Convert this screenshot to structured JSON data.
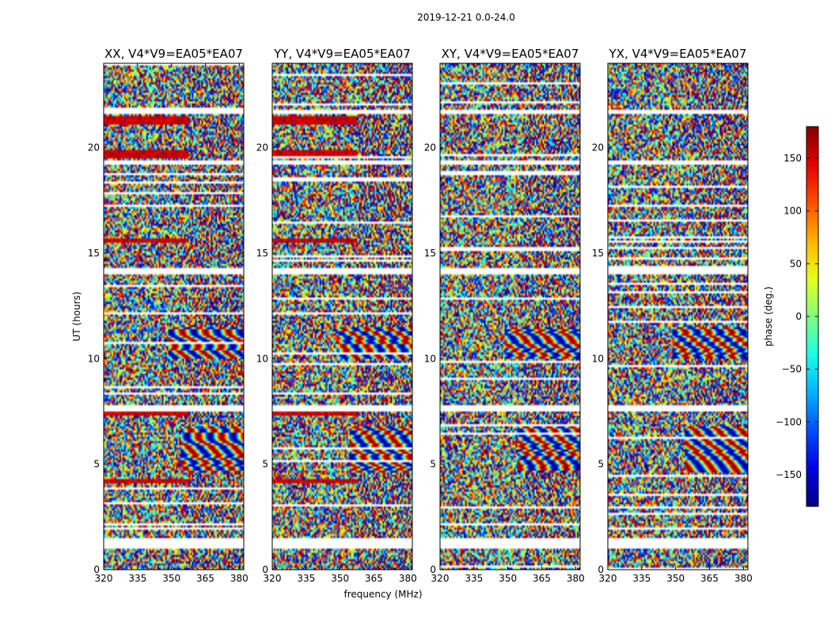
{
  "chart_data": {
    "type": "heatmap",
    "suptitle": "2019-12-21 0.0-24.0",
    "panels": [
      {
        "title": "XX, V4*V9=EA05*EA07"
      },
      {
        "title": "YY, V4*V9=EA05*EA07"
      },
      {
        "title": "XY, V4*V9=EA05*EA07"
      },
      {
        "title": "YX, V4*V9=EA05*EA07"
      }
    ],
    "xlabel": "frequency (MHz)",
    "ylabel": "UT (hours)",
    "xlim": [
      320,
      382
    ],
    "ylim": [
      0,
      24
    ],
    "xticks": [
      "320",
      "335",
      "350",
      "365",
      "380"
    ],
    "xtick_values": [
      320,
      335,
      350,
      365,
      380
    ],
    "yticks": [
      "0",
      "5",
      "10",
      "15",
      "20"
    ],
    "ytick_values": [
      0,
      5,
      10,
      15,
      20
    ],
    "colorbar": {
      "label": "phase (deg.)",
      "range": [
        -180,
        180
      ],
      "ticks": [
        "150",
        "100",
        "50",
        "0",
        "−50",
        "−100",
        "−150"
      ],
      "tick_values": [
        150,
        100,
        50,
        0,
        -50,
        -100,
        -150
      ],
      "colormap": "jet"
    },
    "flagged_gaps_hours": [
      [
        1.0,
        1.5
      ],
      [
        7.5,
        7.8
      ],
      [
        14.0,
        14.3
      ],
      [
        19.2,
        19.4
      ],
      [
        21.6,
        21.8
      ]
    ],
    "pattern_notes": "Noisy phase (random, all colors) with fringe patterns at high frequency near 5-6 UT and 10-11 UT"
  }
}
